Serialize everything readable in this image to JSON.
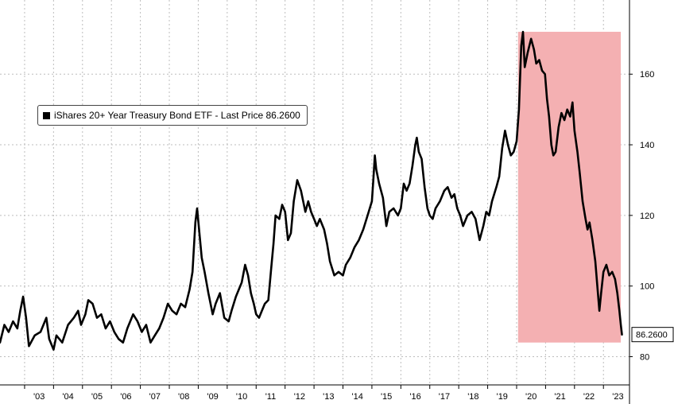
{
  "chart_data": {
    "type": "line",
    "title": "",
    "xlabel": "",
    "ylabel": "",
    "x_tick_labels": [
      "'03",
      "'04",
      "'05",
      "'06",
      "'07",
      "'08",
      "'09",
      "'10",
      "'11",
      "'12",
      "'13",
      "'14",
      "'15",
      "'16",
      "'17",
      "'18",
      "'19",
      "'20",
      "'21",
      "'22",
      "'23"
    ],
    "y_ticks": [
      80,
      100,
      120,
      140,
      160
    ],
    "ylim": [
      72,
      181
    ],
    "xlim": [
      2002.15,
      2023.9
    ],
    "grid": true,
    "legend_position": "upper-left",
    "legend_label": "iShares 20+ Year Treasury Bond ETF - Last Price 86.2600",
    "last_price_label": "86.2600",
    "highlight_region": {
      "x_start": 2020.05,
      "x_end": 2023.6,
      "y_low": 84,
      "y_high": 172,
      "color": "#f4b0b2"
    },
    "colors": {
      "line": "#000000",
      "highlight": "#f4b0b2",
      "grid": "#bdbdbd"
    },
    "series": [
      {
        "name": "iShares 20+ Year Treasury Bond ETF",
        "points": [
          [
            2002.15,
            84
          ],
          [
            2002.3,
            89
          ],
          [
            2002.45,
            87
          ],
          [
            2002.6,
            90
          ],
          [
            2002.75,
            88
          ],
          [
            2002.85,
            93
          ],
          [
            2002.95,
            97
          ],
          [
            2003.05,
            91
          ],
          [
            2003.15,
            83
          ],
          [
            2003.35,
            86
          ],
          [
            2003.55,
            87
          ],
          [
            2003.75,
            91
          ],
          [
            2003.85,
            85
          ],
          [
            2004.0,
            82
          ],
          [
            2004.1,
            86
          ],
          [
            2004.3,
            84
          ],
          [
            2004.5,
            89
          ],
          [
            2004.7,
            91
          ],
          [
            2004.85,
            93
          ],
          [
            2004.95,
            89
          ],
          [
            2005.1,
            92
          ],
          [
            2005.2,
            96
          ],
          [
            2005.35,
            95
          ],
          [
            2005.5,
            91
          ],
          [
            2005.65,
            92
          ],
          [
            2005.8,
            88
          ],
          [
            2005.95,
            90
          ],
          [
            2006.1,
            87
          ],
          [
            2006.25,
            85
          ],
          [
            2006.4,
            84
          ],
          [
            2006.55,
            88
          ],
          [
            2006.75,
            92
          ],
          [
            2006.9,
            90
          ],
          [
            2007.05,
            87
          ],
          [
            2007.2,
            89
          ],
          [
            2007.35,
            84
          ],
          [
            2007.5,
            86
          ],
          [
            2007.65,
            88
          ],
          [
            2007.8,
            91
          ],
          [
            2007.95,
            95
          ],
          [
            2008.1,
            93
          ],
          [
            2008.25,
            92
          ],
          [
            2008.4,
            95
          ],
          [
            2008.55,
            94
          ],
          [
            2008.7,
            99
          ],
          [
            2008.8,
            104
          ],
          [
            2008.9,
            118
          ],
          [
            2008.96,
            122
          ],
          [
            2009.05,
            114
          ],
          [
            2009.12,
            108
          ],
          [
            2009.22,
            104
          ],
          [
            2009.35,
            98
          ],
          [
            2009.5,
            92
          ],
          [
            2009.6,
            95
          ],
          [
            2009.75,
            98
          ],
          [
            2009.9,
            91
          ],
          [
            2010.05,
            90
          ],
          [
            2010.15,
            93
          ],
          [
            2010.3,
            97
          ],
          [
            2010.5,
            101
          ],
          [
            2010.62,
            106
          ],
          [
            2010.72,
            103
          ],
          [
            2010.82,
            98
          ],
          [
            2010.92,
            95
          ],
          [
            2011.0,
            92
          ],
          [
            2011.1,
            91
          ],
          [
            2011.2,
            93
          ],
          [
            2011.3,
            95
          ],
          [
            2011.42,
            96
          ],
          [
            2011.52,
            105
          ],
          [
            2011.6,
            112
          ],
          [
            2011.67,
            120
          ],
          [
            2011.8,
            119
          ],
          [
            2011.9,
            123
          ],
          [
            2012.0,
            121
          ],
          [
            2012.1,
            113
          ],
          [
            2012.2,
            115
          ],
          [
            2012.3,
            124
          ],
          [
            2012.42,
            130
          ],
          [
            2012.55,
            127
          ],
          [
            2012.7,
            121
          ],
          [
            2012.8,
            124
          ],
          [
            2012.9,
            121
          ],
          [
            2013.0,
            119
          ],
          [
            2013.1,
            117
          ],
          [
            2013.2,
            119
          ],
          [
            2013.35,
            116
          ],
          [
            2013.45,
            112
          ],
          [
            2013.55,
            107
          ],
          [
            2013.7,
            103
          ],
          [
            2013.85,
            104
          ],
          [
            2014.0,
            103
          ],
          [
            2014.1,
            106
          ],
          [
            2014.25,
            108
          ],
          [
            2014.4,
            111
          ],
          [
            2014.55,
            113
          ],
          [
            2014.7,
            116
          ],
          [
            2014.85,
            120
          ],
          [
            2015.0,
            124
          ],
          [
            2015.05,
            130
          ],
          [
            2015.1,
            137
          ],
          [
            2015.15,
            133
          ],
          [
            2015.25,
            129
          ],
          [
            2015.38,
            125
          ],
          [
            2015.5,
            117
          ],
          [
            2015.6,
            121
          ],
          [
            2015.75,
            122
          ],
          [
            2015.9,
            120
          ],
          [
            2016.0,
            122
          ],
          [
            2016.1,
            129
          ],
          [
            2016.2,
            127
          ],
          [
            2016.3,
            129
          ],
          [
            2016.4,
            134
          ],
          [
            2016.5,
            140
          ],
          [
            2016.55,
            142
          ],
          [
            2016.62,
            138
          ],
          [
            2016.72,
            136
          ],
          [
            2016.82,
            128
          ],
          [
            2016.92,
            122
          ],
          [
            2017.0,
            120
          ],
          [
            2017.1,
            119
          ],
          [
            2017.2,
            122
          ],
          [
            2017.35,
            124
          ],
          [
            2017.5,
            127
          ],
          [
            2017.62,
            128
          ],
          [
            2017.75,
            125
          ],
          [
            2017.85,
            126
          ],
          [
            2017.95,
            122
          ],
          [
            2018.05,
            120
          ],
          [
            2018.15,
            117
          ],
          [
            2018.3,
            120
          ],
          [
            2018.45,
            121
          ],
          [
            2018.58,
            119
          ],
          [
            2018.72,
            113
          ],
          [
            2018.85,
            117
          ],
          [
            2018.95,
            121
          ],
          [
            2019.05,
            120
          ],
          [
            2019.15,
            124
          ],
          [
            2019.3,
            128
          ],
          [
            2019.4,
            131
          ],
          [
            2019.5,
            139
          ],
          [
            2019.6,
            144
          ],
          [
            2019.7,
            140
          ],
          [
            2019.8,
            137
          ],
          [
            2019.9,
            138
          ],
          [
            2020.0,
            141
          ],
          [
            2020.08,
            150
          ],
          [
            2020.16,
            168
          ],
          [
            2020.22,
            172
          ],
          [
            2020.28,
            162
          ],
          [
            2020.38,
            166
          ],
          [
            2020.5,
            170
          ],
          [
            2020.6,
            167
          ],
          [
            2020.68,
            163
          ],
          [
            2020.78,
            164
          ],
          [
            2020.88,
            161
          ],
          [
            2020.98,
            160
          ],
          [
            2021.05,
            153
          ],
          [
            2021.12,
            148
          ],
          [
            2021.2,
            140
          ],
          [
            2021.27,
            137
          ],
          [
            2021.35,
            138
          ],
          [
            2021.45,
            145
          ],
          [
            2021.55,
            149
          ],
          [
            2021.65,
            147
          ],
          [
            2021.75,
            150
          ],
          [
            2021.85,
            148
          ],
          [
            2021.93,
            152
          ],
          [
            2022.0,
            144
          ],
          [
            2022.1,
            138
          ],
          [
            2022.18,
            132
          ],
          [
            2022.28,
            124
          ],
          [
            2022.38,
            119
          ],
          [
            2022.45,
            116
          ],
          [
            2022.52,
            118
          ],
          [
            2022.62,
            113
          ],
          [
            2022.72,
            107
          ],
          [
            2022.8,
            99
          ],
          [
            2022.86,
            93
          ],
          [
            2022.92,
            98
          ],
          [
            2023.0,
            104
          ],
          [
            2023.1,
            106
          ],
          [
            2023.2,
            103
          ],
          [
            2023.3,
            104
          ],
          [
            2023.4,
            102
          ],
          [
            2023.48,
            98
          ],
          [
            2023.55,
            93
          ],
          [
            2023.6,
            89
          ],
          [
            2023.64,
            86.26
          ]
        ]
      }
    ]
  }
}
